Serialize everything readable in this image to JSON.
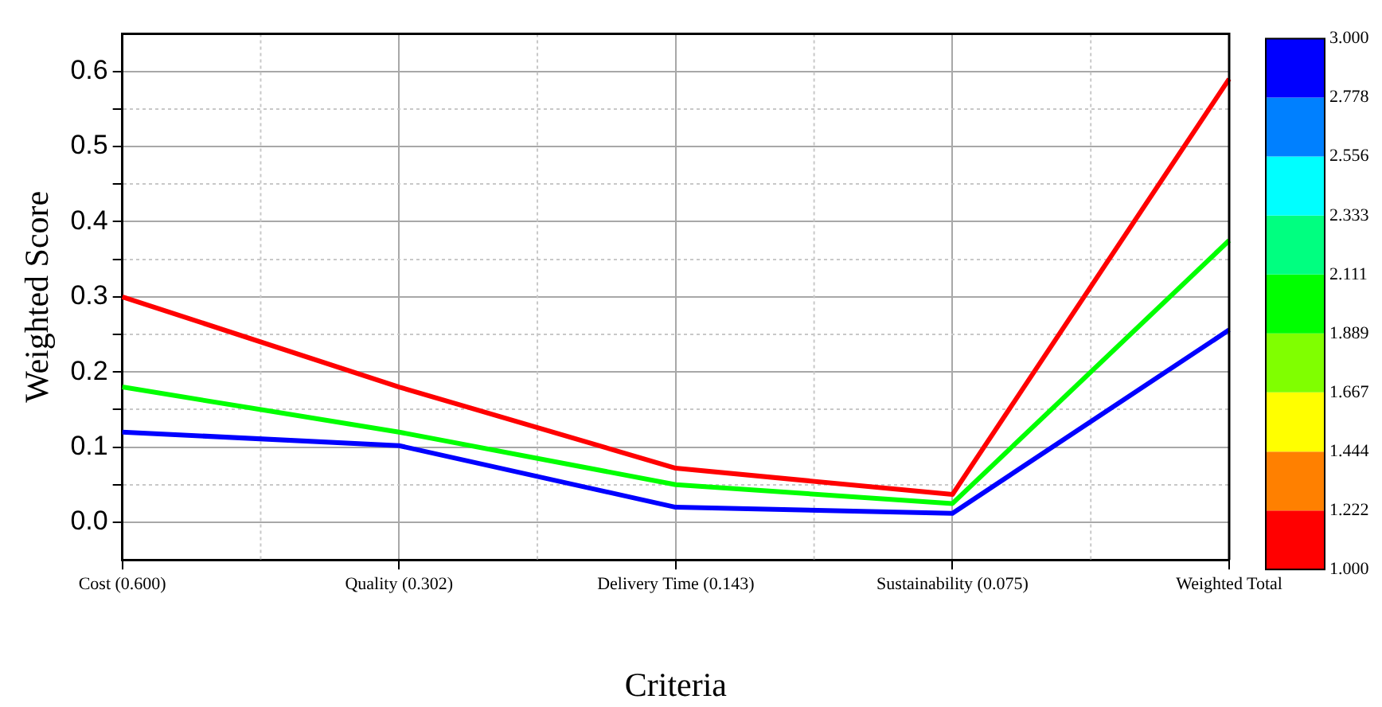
{
  "chart_data": {
    "type": "line",
    "xlabel": "Criteria",
    "ylabel": "Weighted Score",
    "categories": [
      "Cost (0.600)",
      "Quality (0.302)",
      "Delivery Time (0.143)",
      "Sustainability (0.075)",
      "Weighted Total"
    ],
    "series": [
      {
        "color": "#ff0000",
        "values": [
          0.3,
          0.18,
          0.072,
          0.037,
          0.59
        ]
      },
      {
        "color": "#00ff00",
        "values": [
          0.18,
          0.12,
          0.05,
          0.025,
          0.375
        ]
      },
      {
        "color": "#0000ff",
        "values": [
          0.12,
          0.102,
          0.02,
          0.012,
          0.256
        ]
      }
    ],
    "ylim": [
      -0.05,
      0.65
    ],
    "yticks": [
      {
        "value": 0,
        "label": "0.0"
      },
      {
        "value": 0.05,
        "label": null
      },
      0.1,
      {
        "value": 0.15,
        "label": null
      },
      0.2,
      {
        "value": 0.25,
        "label": null
      },
      0.3,
      {
        "value": 0.35,
        "label": null
      },
      0.4,
      {
        "value": 0.45,
        "label": null
      },
      0.5,
      {
        "value": 0.55,
        "label": null
      },
      0.6
    ],
    "clim": [
      1,
      3
    ],
    "cticks": [
      {
        "value": 1,
        "label": "1.000"
      },
      {
        "value": 1.222,
        "label": "1.222"
      },
      {
        "value": 1.444,
        "label": "1.444"
      },
      {
        "value": 1.667,
        "label": "1.667"
      },
      {
        "value": 1.889,
        "label": "1.889"
      },
      {
        "value": 2.111,
        "label": "2.111"
      },
      {
        "value": 2.333,
        "label": "2.333"
      },
      {
        "value": 2.556,
        "label": "2.556"
      },
      {
        "value": 2.778,
        "label": "2.778"
      },
      {
        "value": 3,
        "label": "3.000"
      }
    ],
    "grid": true,
    "legend": false,
    "marker": "none",
    "line_style": "solid"
  }
}
